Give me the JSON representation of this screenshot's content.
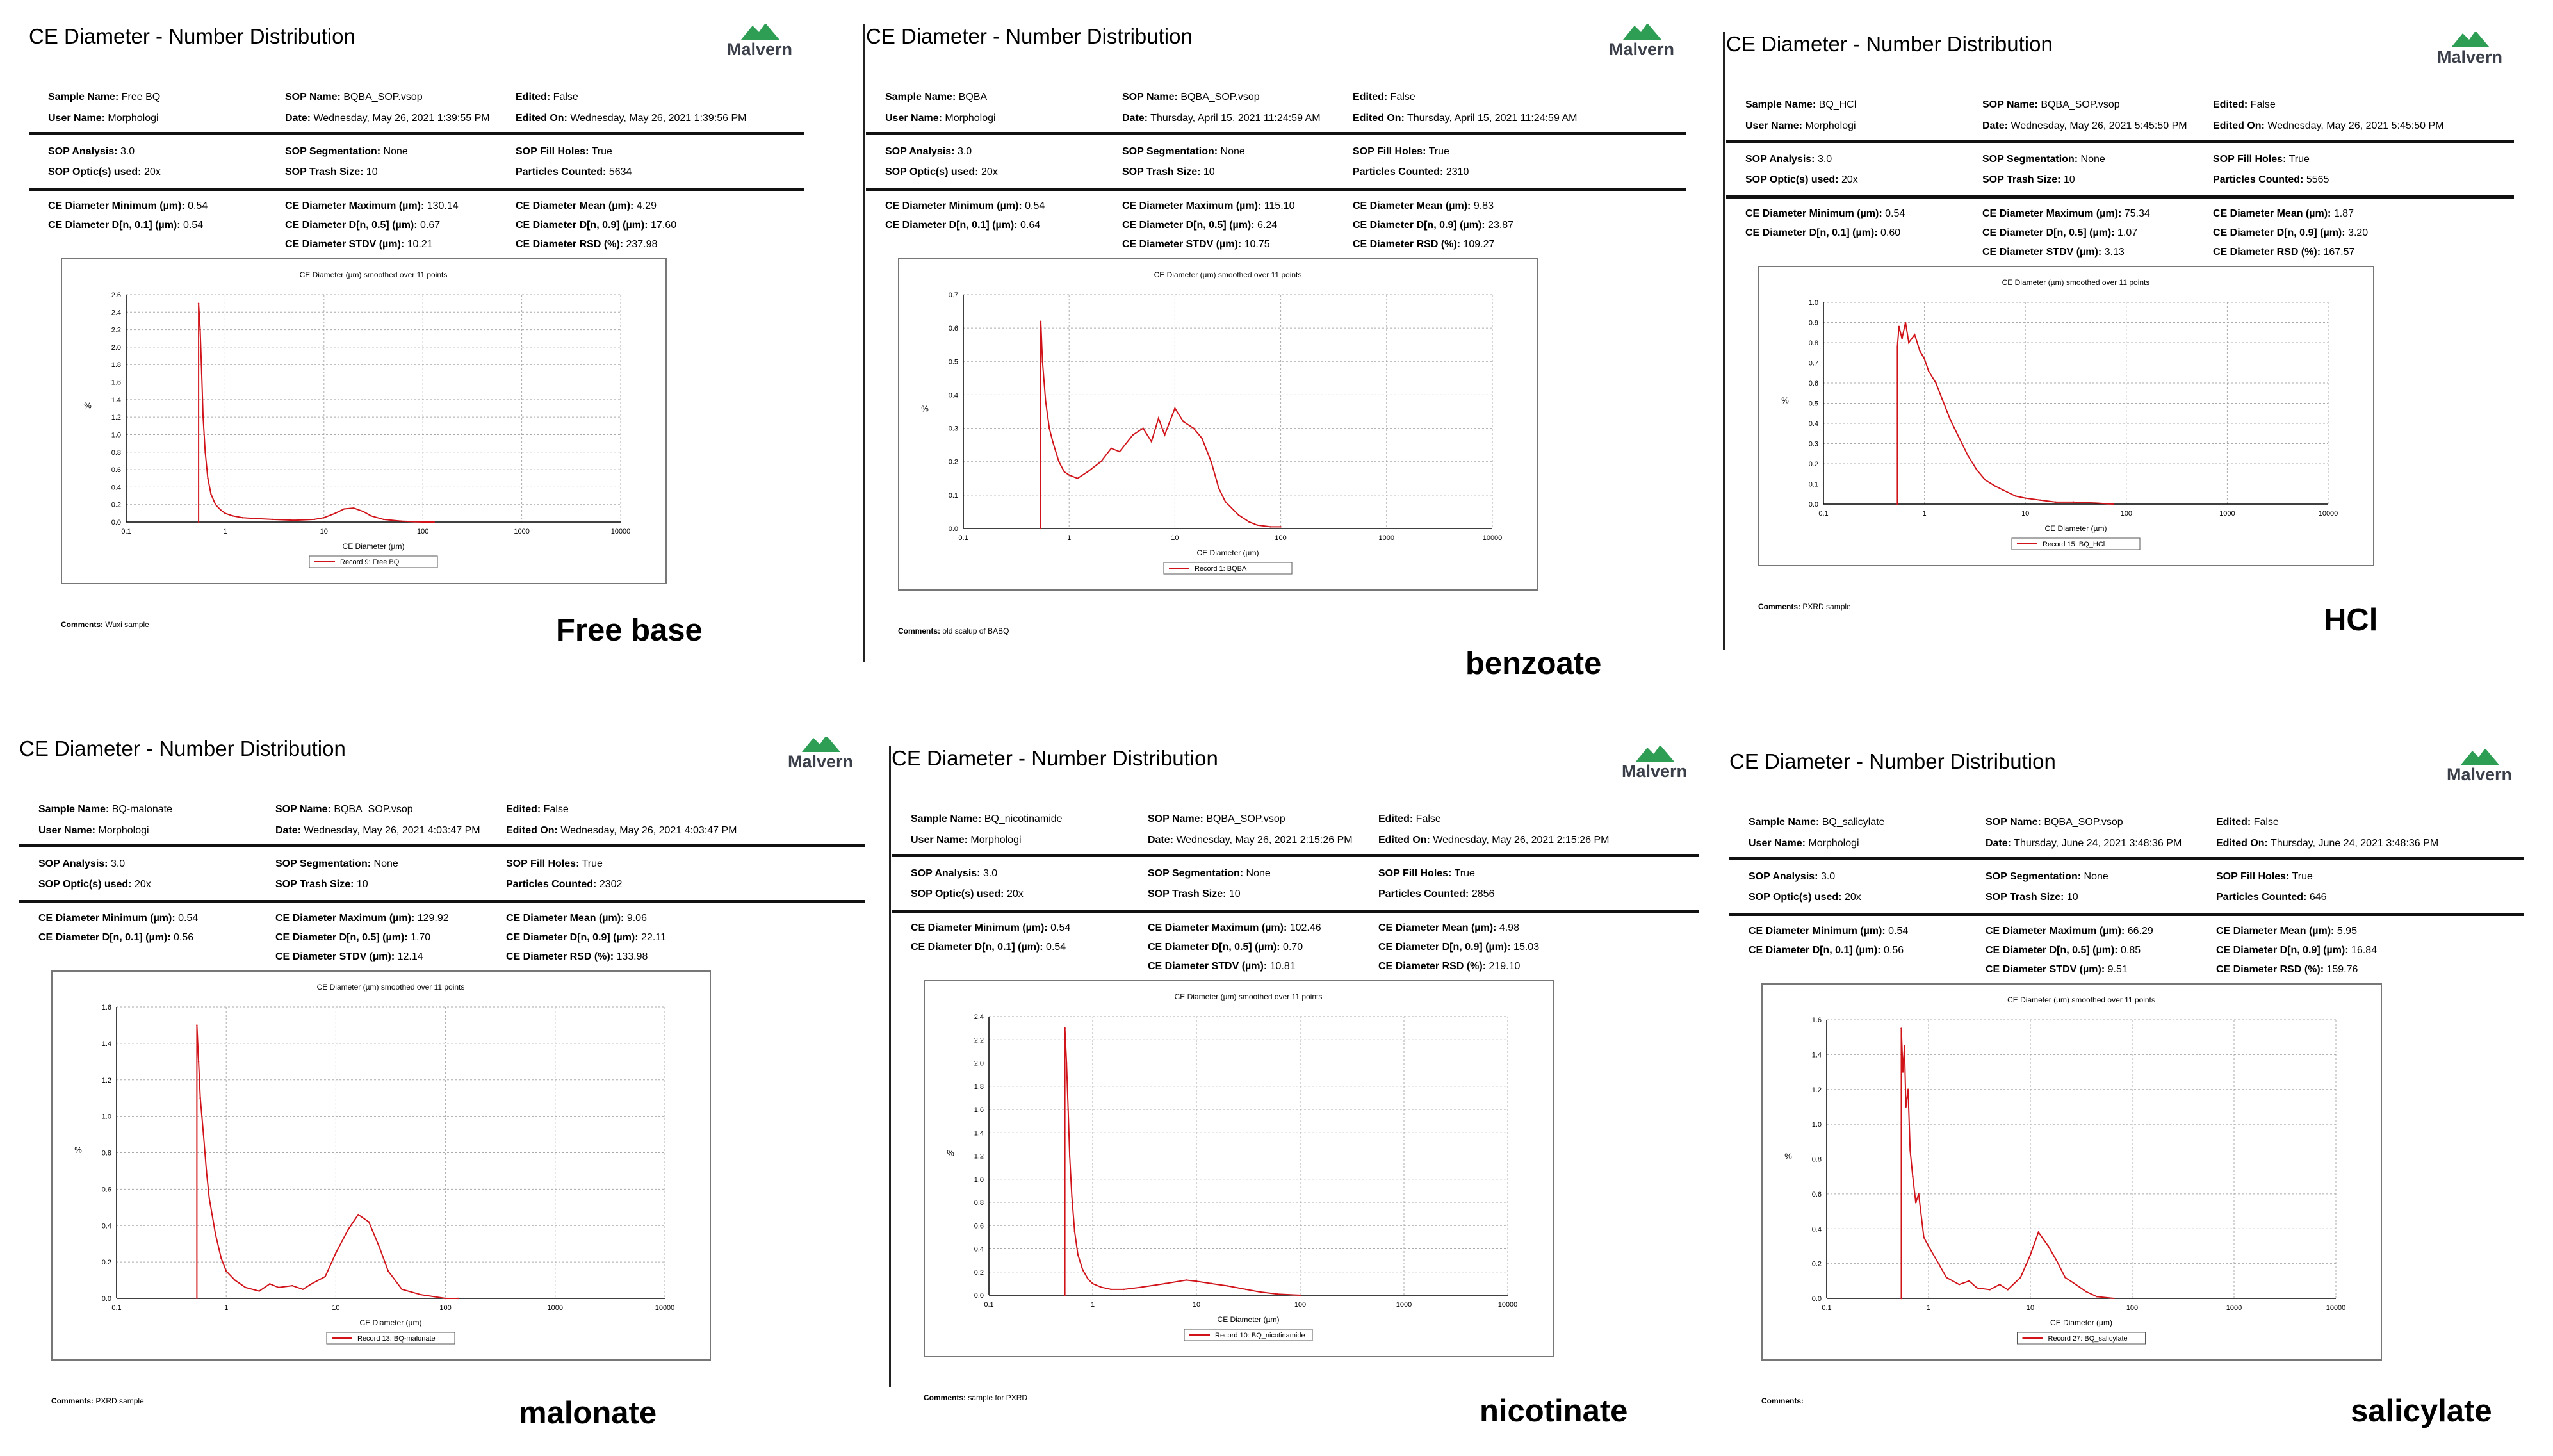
{
  "logo_text": "Malvern",
  "colors": {
    "curve": "#d0141a",
    "logo_green": "#2f9e55",
    "grid": "#aaaaaa"
  },
  "field_labels": {
    "sample_name": "Sample Name:",
    "user_name": "User Name:",
    "sop_name": "SOP Name:",
    "date": "Date:",
    "edited": "Edited:",
    "edited_on": "Edited On:",
    "sop_analysis": "SOP Analysis:",
    "sop_optics": "SOP Optic(s) used:",
    "sop_segmentation": "SOP Segmentation:",
    "sop_trash": "SOP Trash Size:",
    "sop_fill": "SOP Fill Holes:",
    "particles_counted": "Particles Counted:",
    "ce_min": "CE Diameter Minimum (µm):",
    "ce_d10": "CE Diameter D[n, 0.1] (µm):",
    "ce_max": "CE Diameter Maximum (µm):",
    "ce_d50": "CE Diameter D[n, 0.5] (µm):",
    "ce_stdv": "CE Diameter STDV (µm):",
    "ce_mean": "CE Diameter Mean (µm):",
    "ce_d90": "CE Diameter D[n, 0.9] (µm):",
    "ce_rsd": "CE Diameter RSD (%):",
    "comments": "Comments:"
  },
  "reports": [
    {
      "label": "Free base",
      "title": "CE Diameter - Number Distribution",
      "sample_name": "Free BQ",
      "user_name": "Morphologi",
      "sop_name": "BQBA_SOP.vsop",
      "date": "Wednesday, May 26, 2021 1:39:55 PM",
      "edited": "False",
      "edited_on": "Wednesday, May 26, 2021 1:39:56 PM",
      "sop_analysis": "3.0",
      "sop_optics": "20x",
      "sop_segmentation": "None",
      "sop_trash": "10",
      "sop_fill": "True",
      "particles_counted": "5634",
      "ce_min": "0.54",
      "ce_d10": "0.54",
      "ce_max": "130.14",
      "ce_d50": "0.67",
      "ce_stdv": "10.21",
      "ce_mean": "4.29",
      "ce_d90": "17.60",
      "ce_rsd": "237.98",
      "comments": "Wuxi sample",
      "chart_data": {
        "type": "line",
        "title": "CE Diameter (µm) smoothed over 11 points",
        "xlabel": "CE Diameter (µm)",
        "ylabel": "%",
        "x_scale": "log",
        "xlim": [
          0.1,
          10000
        ],
        "ylim": [
          0,
          2.6
        ],
        "x_ticks": [
          "0.1",
          "1",
          "10",
          "100",
          "1000",
          "10000"
        ],
        "y_ticks": [
          "0.0",
          "0.2",
          "0.4",
          "0.6",
          "0.8",
          "1.0",
          "1.2",
          "1.4",
          "1.6",
          "1.8",
          "2.0",
          "2.2",
          "2.4",
          "2.6"
        ],
        "grid": true,
        "legend": "Record 9: Free BQ",
        "x": [
          0.54,
          0.54,
          0.56,
          0.58,
          0.6,
          0.63,
          0.67,
          0.72,
          0.8,
          0.9,
          1.0,
          1.2,
          1.5,
          2,
          3,
          5,
          8,
          10,
          13,
          16,
          20,
          25,
          30,
          40,
          60,
          100,
          130
        ],
        "y": [
          0,
          2.5,
          2.2,
          1.7,
          1.2,
          0.8,
          0.5,
          0.32,
          0.2,
          0.14,
          0.1,
          0.07,
          0.05,
          0.04,
          0.03,
          0.02,
          0.03,
          0.05,
          0.1,
          0.15,
          0.16,
          0.12,
          0.07,
          0.03,
          0.01,
          0.0,
          0.0
        ]
      }
    },
    {
      "label": "benzoate",
      "title": "CE Diameter - Number Distribution",
      "sample_name": "BQBA",
      "user_name": "Morphologi",
      "sop_name": "BQBA_SOP.vsop",
      "date": "Thursday, April 15, 2021 11:24:59 AM",
      "edited": "False",
      "edited_on": "Thursday, April 15, 2021 11:24:59 AM",
      "sop_analysis": "3.0",
      "sop_optics": "20x",
      "sop_segmentation": "None",
      "sop_trash": "10",
      "sop_fill": "True",
      "particles_counted": "2310",
      "ce_min": "0.54",
      "ce_d10": "0.64",
      "ce_max": "115.10",
      "ce_d50": "6.24",
      "ce_stdv": "10.75",
      "ce_mean": "9.83",
      "ce_d90": "23.87",
      "ce_rsd": "109.27",
      "comments": "old scalup of BABQ",
      "chart_data": {
        "type": "line",
        "title": "CE Diameter (µm) smoothed over 11 points",
        "xlabel": "CE Diameter (µm)",
        "ylabel": "%",
        "x_scale": "log",
        "xlim": [
          0.1,
          10000
        ],
        "ylim": [
          0,
          0.7
        ],
        "x_ticks": [
          "0.1",
          "1",
          "10",
          "100",
          "1000",
          "10000"
        ],
        "y_ticks": [
          "0.0",
          "0.1",
          "0.2",
          "0.3",
          "0.4",
          "0.5",
          "0.6",
          "0.7"
        ],
        "grid": true,
        "legend": "Record 1: BQBA",
        "x": [
          0.54,
          0.54,
          0.56,
          0.6,
          0.65,
          0.7,
          0.8,
          0.9,
          1.0,
          1.2,
          1.5,
          2,
          2.5,
          3,
          4,
          5,
          6,
          7,
          8,
          10,
          12,
          15,
          18,
          22,
          26,
          30,
          40,
          50,
          60,
          80,
          100
        ],
        "y": [
          0,
          0.62,
          0.5,
          0.38,
          0.3,
          0.26,
          0.2,
          0.17,
          0.16,
          0.15,
          0.17,
          0.2,
          0.24,
          0.23,
          0.28,
          0.3,
          0.26,
          0.33,
          0.28,
          0.36,
          0.32,
          0.3,
          0.27,
          0.2,
          0.12,
          0.08,
          0.04,
          0.02,
          0.01,
          0.005,
          0.005
        ]
      }
    },
    {
      "label": "HCl",
      "title": "CE Diameter - Number Distribution",
      "sample_name": "BQ_HCl",
      "user_name": "Morphologi",
      "sop_name": "BQBA_SOP.vsop",
      "date": "Wednesday, May 26, 2021 5:45:50 PM",
      "edited": "False",
      "edited_on": "Wednesday, May 26, 2021 5:45:50 PM",
      "sop_analysis": "3.0",
      "sop_optics": "20x",
      "sop_segmentation": "None",
      "sop_trash": "10",
      "sop_fill": "True",
      "particles_counted": "5565",
      "ce_min": "0.54",
      "ce_d10": "0.60",
      "ce_max": "75.34",
      "ce_d50": "1.07",
      "ce_stdv": "3.13",
      "ce_mean": "1.87",
      "ce_d90": "3.20",
      "ce_rsd": "167.57",
      "comments": "PXRD sample",
      "chart_data": {
        "type": "line",
        "title": "CE Diameter (µm) smoothed over 11 points",
        "xlabel": "CE Diameter (µm)",
        "ylabel": "%",
        "x_scale": "log",
        "xlim": [
          0.1,
          10000
        ],
        "ylim": [
          0,
          1.0
        ],
        "x_ticks": [
          "0.1",
          "1",
          "10",
          "100",
          "1000",
          "10000"
        ],
        "y_ticks": [
          "0.0",
          "0.1",
          "0.2",
          "0.3",
          "0.4",
          "0.5",
          "0.6",
          "0.7",
          "0.8",
          "0.9",
          "1.0"
        ],
        "grid": true,
        "legend": "Record 15: BQ_HCl",
        "x": [
          0.54,
          0.54,
          0.56,
          0.6,
          0.65,
          0.7,
          0.8,
          0.9,
          1.0,
          1.1,
          1.3,
          1.5,
          1.8,
          2.2,
          2.7,
          3.3,
          4,
          5,
          6,
          8,
          10,
          14,
          20,
          30,
          50,
          75
        ],
        "y": [
          0,
          0.78,
          0.88,
          0.82,
          0.9,
          0.8,
          0.84,
          0.76,
          0.72,
          0.66,
          0.6,
          0.52,
          0.42,
          0.33,
          0.24,
          0.17,
          0.12,
          0.09,
          0.07,
          0.04,
          0.03,
          0.02,
          0.01,
          0.01,
          0.005,
          0.0
        ]
      }
    },
    {
      "label": "malonate",
      "title": "CE Diameter - Number Distribution",
      "sample_name": "BQ-malonate",
      "user_name": "Morphologi",
      "sop_name": "BQBA_SOP.vsop",
      "date": "Wednesday, May 26, 2021 4:03:47 PM",
      "edited": "False",
      "edited_on": "Wednesday, May 26, 2021 4:03:47 PM",
      "sop_analysis": "3.0",
      "sop_optics": "20x",
      "sop_segmentation": "None",
      "sop_trash": "10",
      "sop_fill": "True",
      "particles_counted": "2302",
      "ce_min": "0.54",
      "ce_d10": "0.56",
      "ce_max": "129.92",
      "ce_d50": "1.70",
      "ce_stdv": "12.14",
      "ce_mean": "9.06",
      "ce_d90": "22.11",
      "ce_rsd": "133.98",
      "comments": "PXRD sample",
      "chart_data": {
        "type": "line",
        "title": "CE Diameter (µm) smoothed over 11 points",
        "xlabel": "CE Diameter (µm)",
        "ylabel": "%",
        "x_scale": "log",
        "xlim": [
          0.1,
          10000
        ],
        "ylim": [
          0,
          1.6
        ],
        "x_ticks": [
          "0.1",
          "1",
          "10",
          "100",
          "1000",
          "10000"
        ],
        "y_ticks": [
          "0.0",
          "0.2",
          "0.4",
          "0.6",
          "0.8",
          "1.0",
          "1.2",
          "1.4",
          "1.6"
        ],
        "grid": true,
        "legend": "Record 13: BQ-malonate",
        "x": [
          0.54,
          0.54,
          0.56,
          0.58,
          0.62,
          0.66,
          0.7,
          0.8,
          0.9,
          1.0,
          1.2,
          1.5,
          2,
          2.5,
          3,
          4,
          5,
          6,
          8,
          10,
          13,
          16,
          20,
          25,
          30,
          40,
          60,
          100,
          130
        ],
        "y": [
          0,
          1.5,
          1.3,
          1.1,
          0.9,
          0.7,
          0.55,
          0.35,
          0.22,
          0.15,
          0.1,
          0.06,
          0.04,
          0.08,
          0.06,
          0.07,
          0.05,
          0.08,
          0.12,
          0.25,
          0.38,
          0.46,
          0.42,
          0.28,
          0.15,
          0.05,
          0.02,
          0.0,
          0.0
        ]
      }
    },
    {
      "label": "nicotinate",
      "title": "CE Diameter - Number Distribution",
      "sample_name": "BQ_nicotinamide",
      "user_name": "Morphologi",
      "sop_name": "BQBA_SOP.vsop",
      "date": "Wednesday, May 26, 2021 2:15:26 PM",
      "edited": "False",
      "edited_on": "Wednesday, May 26, 2021 2:15:26 PM",
      "sop_analysis": "3.0",
      "sop_optics": "20x",
      "sop_segmentation": "None",
      "sop_trash": "10",
      "sop_fill": "True",
      "particles_counted": "2856",
      "ce_min": "0.54",
      "ce_d10": "0.54",
      "ce_max": "102.46",
      "ce_d50": "0.70",
      "ce_stdv": "10.81",
      "ce_mean": "4.98",
      "ce_d90": "15.03",
      "ce_rsd": "219.10",
      "comments": "sample for PXRD",
      "chart_data": {
        "type": "line",
        "title": "CE Diameter (µm) smoothed over 11 points",
        "xlabel": "CE Diameter (µm)",
        "ylabel": "%",
        "x_scale": "log",
        "xlim": [
          0.1,
          10000
        ],
        "ylim": [
          0,
          2.4
        ],
        "x_ticks": [
          "0.1",
          "1",
          "10",
          "100",
          "1000",
          "10000"
        ],
        "y_ticks": [
          "0.0",
          "0.2",
          "0.4",
          "0.6",
          "0.8",
          "1.0",
          "1.2",
          "1.4",
          "1.6",
          "1.8",
          "2.0",
          "2.2",
          "2.4"
        ],
        "grid": true,
        "legend": "Record 10: BQ_nicotinamide",
        "x": [
          0.54,
          0.54,
          0.56,
          0.58,
          0.6,
          0.63,
          0.67,
          0.72,
          0.8,
          0.9,
          1.0,
          1.2,
          1.5,
          2,
          3,
          5,
          8,
          10,
          14,
          20,
          30,
          40,
          60,
          100
        ],
        "y": [
          0,
          2.3,
          2.0,
          1.6,
          1.2,
          0.85,
          0.55,
          0.35,
          0.22,
          0.14,
          0.1,
          0.07,
          0.05,
          0.05,
          0.07,
          0.1,
          0.13,
          0.12,
          0.1,
          0.08,
          0.05,
          0.03,
          0.01,
          0.0
        ]
      }
    },
    {
      "label": "salicylate",
      "title": "CE Diameter - Number Distribution",
      "sample_name": "BQ_salicylate",
      "user_name": "Morphologi",
      "sop_name": "BQBA_SOP.vsop",
      "date": "Thursday, June 24, 2021 3:48:36 PM",
      "edited": "False",
      "edited_on": "Thursday, June 24, 2021 3:48:36 PM",
      "sop_analysis": "3.0",
      "sop_optics": "20x",
      "sop_segmentation": "None",
      "sop_trash": "10",
      "sop_fill": "True",
      "particles_counted": "646",
      "ce_min": "0.54",
      "ce_d10": "0.56",
      "ce_max": "66.29",
      "ce_d50": "0.85",
      "ce_stdv": "9.51",
      "ce_mean": "5.95",
      "ce_d90": "16.84",
      "ce_rsd": "159.76",
      "comments": "",
      "chart_data": {
        "type": "line",
        "title": "CE Diameter (µm) smoothed over 11 points",
        "xlabel": "CE Diameter (µm)",
        "ylabel": "%",
        "x_scale": "log",
        "xlim": [
          0.1,
          10000
        ],
        "ylim": [
          0,
          1.6
        ],
        "x_ticks": [
          "0.1",
          "1",
          "10",
          "100",
          "1000",
          "10000"
        ],
        "y_ticks": [
          "0.0",
          "0.2",
          "0.4",
          "0.6",
          "0.8",
          "1.0",
          "1.2",
          "1.4",
          "1.6"
        ],
        "grid": true,
        "legend": "Record 27: BQ_salicylate",
        "x": [
          0.54,
          0.54,
          0.56,
          0.58,
          0.6,
          0.63,
          0.66,
          0.7,
          0.75,
          0.8,
          0.9,
          1.0,
          1.2,
          1.5,
          2,
          2.5,
          3,
          4,
          5,
          6,
          8,
          10,
          12,
          15,
          18,
          22,
          28,
          35,
          45,
          66
        ],
        "y": [
          0,
          1.55,
          1.3,
          1.45,
          1.1,
          1.2,
          0.85,
          0.7,
          0.55,
          0.6,
          0.35,
          0.3,
          0.22,
          0.12,
          0.08,
          0.1,
          0.06,
          0.05,
          0.08,
          0.05,
          0.12,
          0.25,
          0.38,
          0.3,
          0.22,
          0.12,
          0.08,
          0.04,
          0.01,
          0.0
        ]
      }
    }
  ]
}
